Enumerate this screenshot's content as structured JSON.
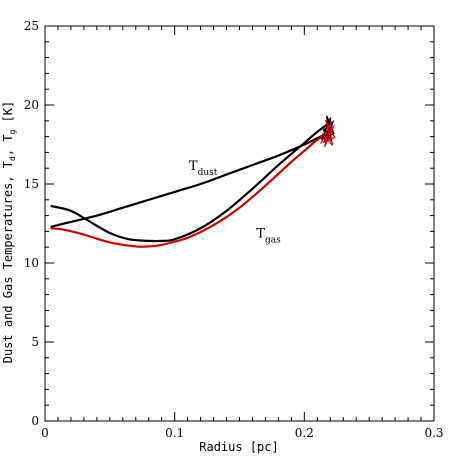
{
  "chart_data": {
    "type": "line",
    "title": "",
    "xlabel": "Radius [pc]",
    "ylabel": "Dust and Gas Temperatures, T",
    "ylabel_sub_d": "d",
    "ylabel_sep": ", T",
    "ylabel_sub_g": "g",
    "ylabel_unit": " [K]",
    "xlim": [
      0,
      0.3
    ],
    "ylim": [
      0,
      25
    ],
    "xticks": [
      0,
      0.1,
      0.2,
      0.3
    ],
    "xtick_labels": [
      "0",
      "0.1",
      "0.2",
      "0.3"
    ],
    "yticks": [
      0,
      5,
      10,
      15,
      20,
      25
    ],
    "ytick_labels": [
      "0",
      "5",
      "10",
      "15",
      "20",
      "25"
    ],
    "grid": false,
    "legend": "none",
    "annotations": [
      {
        "main": "T",
        "sub": "dust",
        "x": 0.111,
        "y": 15.9
      },
      {
        "main": "T",
        "sub": "gas",
        "x": 0.163,
        "y": 11.6
      }
    ],
    "series": [
      {
        "color": "#000000",
        "x": [
          0.005,
          0.02,
          0.04,
          0.06,
          0.08,
          0.1,
          0.12,
          0.14,
          0.16,
          0.18,
          0.2,
          0.21,
          0.22
        ],
        "y": [
          12.3,
          12.6,
          13.0,
          13.5,
          14.0,
          14.5,
          15.0,
          15.6,
          16.2,
          16.8,
          17.5,
          17.9,
          18.3
        ]
      },
      {
        "color": "#cc0000",
        "x": [
          0.005,
          0.015,
          0.03,
          0.05,
          0.07,
          0.08,
          0.09,
          0.11,
          0.13,
          0.15,
          0.17,
          0.19,
          0.2,
          0.21,
          0.22
        ],
        "y": [
          12.2,
          12.1,
          11.8,
          11.3,
          11.05,
          11.05,
          11.15,
          11.6,
          12.4,
          13.5,
          14.9,
          16.4,
          17.1,
          17.8,
          18.3
        ]
      },
      {
        "color": "#000000",
        "x": [
          0.005,
          0.02,
          0.035,
          0.05,
          0.065,
          0.08,
          0.09,
          0.1,
          0.12,
          0.14,
          0.16,
          0.18,
          0.2,
          0.21,
          0.22
        ],
        "y": [
          13.6,
          13.3,
          12.6,
          11.9,
          11.5,
          11.4,
          11.4,
          11.5,
          12.2,
          13.3,
          14.7,
          16.2,
          17.6,
          18.3,
          18.9
        ]
      }
    ]
  }
}
